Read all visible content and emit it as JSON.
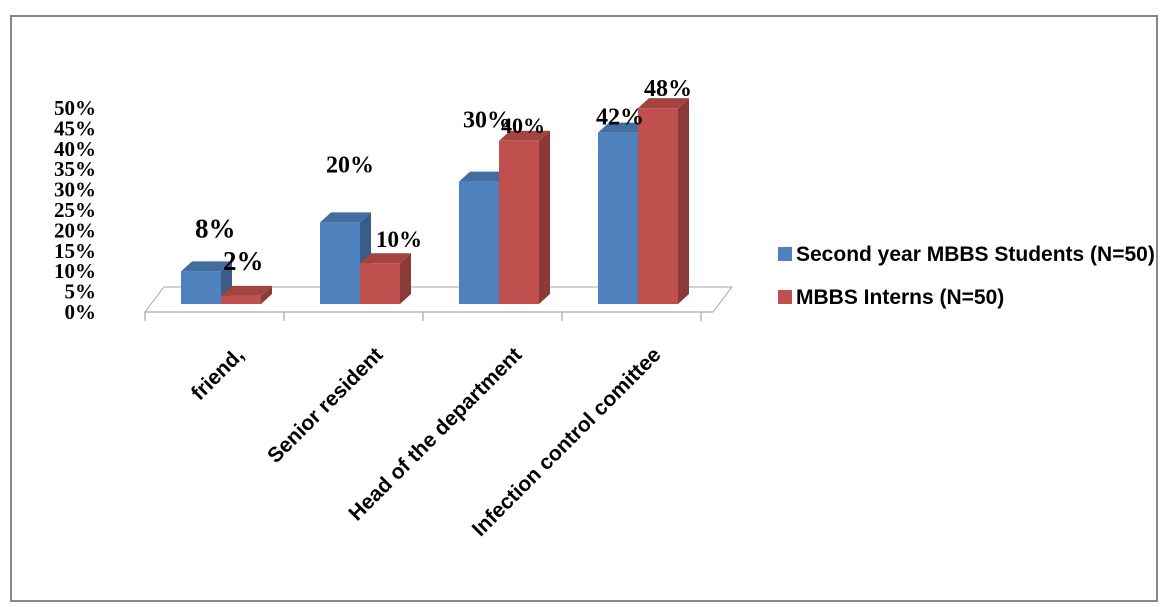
{
  "chart_data": {
    "type": "bar",
    "categories": [
      "friend,",
      "Senior resident",
      "Head of the department",
      "Infection control comittee"
    ],
    "series": [
      {
        "name": "Second year MBBS Students (N=50)",
        "values": [
          8,
          20,
          30,
          42
        ],
        "labels": [
          "8%",
          "20%",
          "30%",
          "42%"
        ],
        "color": "#4F81BD"
      },
      {
        "name": "MBBS Interns (N=50)",
        "values": [
          2,
          10,
          40,
          48
        ],
        "labels": [
          "2%",
          "10%",
          "40%",
          "48%"
        ],
        "color": "#C0504D"
      }
    ],
    "ylim": [
      0,
      50
    ],
    "yticks": [
      "0%",
      "5%",
      "10%",
      "15%",
      "20%",
      "25%",
      "30%",
      "35%",
      "40%",
      "45%",
      "50%"
    ],
    "legend_position": "right",
    "grid": false
  }
}
